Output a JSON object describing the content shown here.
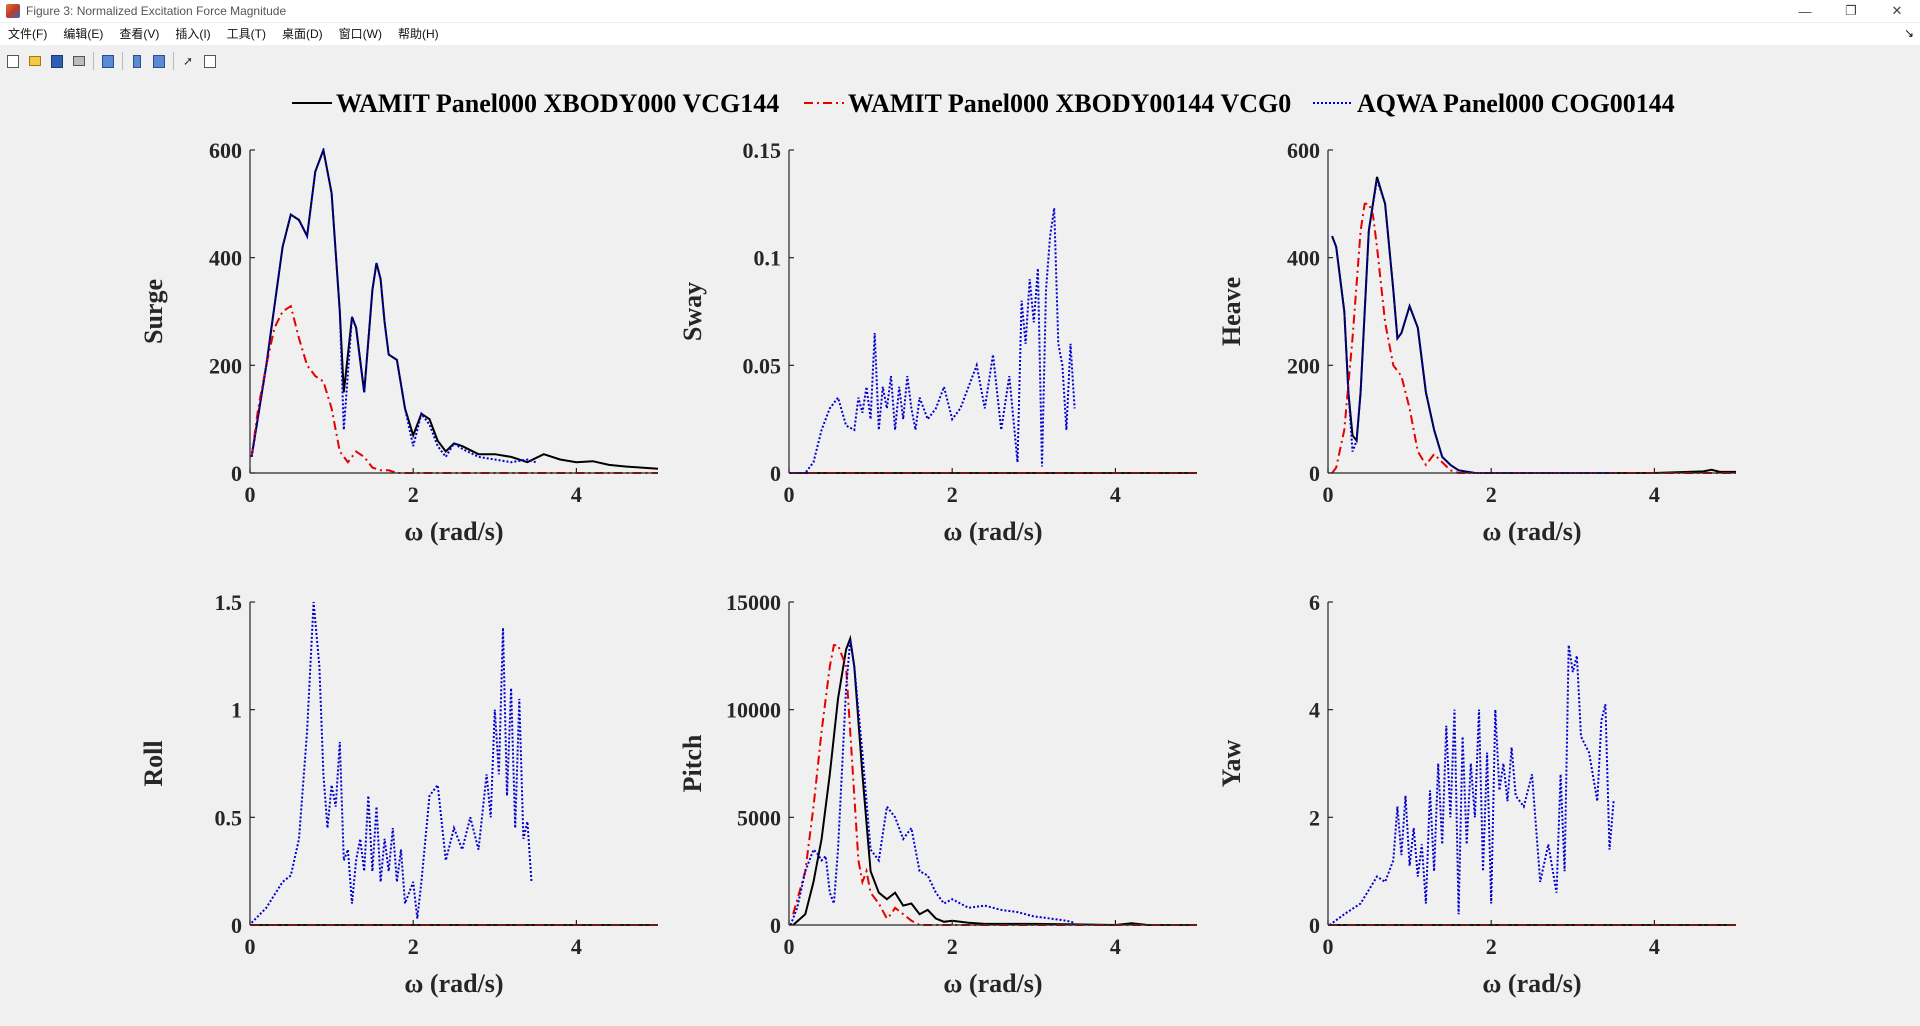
{
  "window": {
    "title": "Figure 3: Normalized Excitation Force Magnitude",
    "controls": [
      "—",
      "❐",
      "✕"
    ]
  },
  "menu": [
    "文件(F)",
    "编辑(E)",
    "查看(V)",
    "插入(I)",
    "工具(T)",
    "桌面(D)",
    "窗口(W)",
    "帮助(H)"
  ],
  "toolbar": [
    "new-figure-icon",
    "open-folder-icon",
    "save-disk-icon",
    "print-icon",
    "print-preview-icon",
    "colorbar-icon",
    "legend-icon",
    "pointer-arrow-icon",
    "property-inspector-icon"
  ],
  "legend": [
    {
      "name": "WAMIT Panel000 XBODY000 VCG144",
      "color": "#000000",
      "dash": "solid"
    },
    {
      "name": "WAMIT Panel000 XBODY00144 VCG0",
      "color": "#e60000",
      "dash": "dashdot"
    },
    {
      "name": "AQWA Panel000 COG00144",
      "color": "#0000cc",
      "dash": "dotted"
    }
  ],
  "chart_data": [
    {
      "type": "line",
      "ylabel": "Surge",
      "xlabel": "ω (rad/s)",
      "xlim": [
        0,
        5
      ],
      "ylim": [
        0,
        600
      ],
      "xticks": [
        "0",
        "2",
        "4"
      ],
      "yticks": [
        "0",
        "200",
        "400",
        "600"
      ],
      "series": [
        {
          "name": "WAMIT Panel000 XBODY000 VCG144",
          "x": [
            0.02,
            0.2,
            0.4,
            0.5,
            0.6,
            0.7,
            0.8,
            0.9,
            1.0,
            1.1,
            1.15,
            1.25,
            1.3,
            1.4,
            1.5,
            1.55,
            1.6,
            1.65,
            1.7,
            1.8,
            1.9,
            2.0,
            2.1,
            2.2,
            2.3,
            2.4,
            2.5,
            2.6,
            2.8,
            3.0,
            3.2,
            3.4,
            3.6,
            3.8,
            4.0,
            4.2,
            4.4,
            4.6,
            4.8,
            5.0
          ],
          "y": [
            30,
            200,
            420,
            480,
            470,
            440,
            560,
            600,
            520,
            300,
            150,
            290,
            270,
            150,
            340,
            390,
            360,
            280,
            220,
            210,
            120,
            70,
            110,
            100,
            60,
            40,
            55,
            50,
            35,
            35,
            30,
            20,
            35,
            25,
            20,
            22,
            15,
            12,
            10,
            8
          ]
        },
        {
          "name": "WAMIT Panel000 XBODY00144 VCG0",
          "x": [
            0.02,
            0.1,
            0.2,
            0.3,
            0.4,
            0.5,
            0.6,
            0.7,
            0.8,
            0.9,
            1.0,
            1.1,
            1.2,
            1.3,
            1.4,
            1.5,
            1.6,
            1.7,
            1.8,
            2.0,
            3.0,
            5.0
          ],
          "y": [
            30,
            120,
            200,
            270,
            300,
            310,
            250,
            200,
            180,
            170,
            120,
            40,
            20,
            40,
            30,
            10,
            5,
            5,
            0,
            0,
            0,
            0
          ]
        },
        {
          "name": "AQWA Panel000 COG00144",
          "x": [
            0.02,
            0.2,
            0.4,
            0.5,
            0.6,
            0.7,
            0.8,
            0.9,
            1.0,
            1.1,
            1.15,
            1.25,
            1.3,
            1.4,
            1.5,
            1.55,
            1.6,
            1.65,
            1.7,
            1.8,
            1.9,
            2.0,
            2.1,
            2.2,
            2.3,
            2.4,
            2.5,
            2.6,
            2.8,
            3.0,
            3.2,
            3.4,
            3.5
          ],
          "y": [
            30,
            200,
            420,
            480,
            470,
            440,
            560,
            600,
            520,
            300,
            80,
            290,
            270,
            150,
            340,
            390,
            360,
            280,
            220,
            210,
            120,
            50,
            110,
            90,
            50,
            30,
            55,
            45,
            30,
            25,
            20,
            25,
            20
          ]
        }
      ]
    },
    {
      "type": "line",
      "ylabel": "Sway",
      "xlabel": "ω (rad/s)",
      "xlim": [
        0,
        5
      ],
      "ylim": [
        0,
        0.15
      ],
      "xticks": [
        "0",
        "2",
        "4"
      ],
      "yticks": [
        "0",
        "0.05",
        "0.1",
        "0.15"
      ],
      "series": [
        {
          "name": "WAMIT Panel000 XBODY000 VCG144",
          "x": [
            0,
            5
          ],
          "y": [
            0,
            0
          ]
        },
        {
          "name": "WAMIT Panel000 XBODY00144 VCG0",
          "x": [
            0,
            5
          ],
          "y": [
            0,
            0
          ]
        },
        {
          "name": "AQWA Panel000 COG00144",
          "x": [
            0.02,
            0.2,
            0.3,
            0.4,
            0.5,
            0.6,
            0.7,
            0.8,
            0.85,
            0.9,
            0.95,
            1.0,
            1.05,
            1.1,
            1.15,
            1.2,
            1.25,
            1.3,
            1.35,
            1.4,
            1.45,
            1.5,
            1.55,
            1.6,
            1.7,
            1.8,
            1.9,
            2.0,
            2.1,
            2.2,
            2.3,
            2.4,
            2.5,
            2.6,
            2.7,
            2.8,
            2.85,
            2.9,
            2.95,
            3.0,
            3.05,
            3.1,
            3.15,
            3.2,
            3.25,
            3.3,
            3.35,
            3.4,
            3.45,
            3.5
          ],
          "y": [
            0,
            0,
            0.005,
            0.02,
            0.03,
            0.035,
            0.022,
            0.02,
            0.035,
            0.028,
            0.04,
            0.025,
            0.065,
            0.02,
            0.04,
            0.03,
            0.045,
            0.02,
            0.04,
            0.025,
            0.045,
            0.03,
            0.02,
            0.035,
            0.025,
            0.03,
            0.04,
            0.025,
            0.03,
            0.04,
            0.05,
            0.03,
            0.055,
            0.02,
            0.045,
            0.005,
            0.08,
            0.06,
            0.09,
            0.07,
            0.095,
            0.003,
            0.085,
            0.11,
            0.123,
            0.06,
            0.05,
            0.02,
            0.06,
            0.03
          ]
        }
      ]
    },
    {
      "type": "line",
      "ylabel": "Heave",
      "xlabel": "ω (rad/s)",
      "xlim": [
        0,
        5
      ],
      "ylim": [
        0,
        600
      ],
      "xticks": [
        "0",
        "2",
        "4"
      ],
      "yticks": [
        "0",
        "200",
        "400",
        "600"
      ],
      "series": [
        {
          "name": "WAMIT Panel000 XBODY000 VCG144",
          "x": [
            0.05,
            0.1,
            0.2,
            0.25,
            0.3,
            0.35,
            0.4,
            0.5,
            0.6,
            0.7,
            0.8,
            0.85,
            0.9,
            1.0,
            1.1,
            1.2,
            1.3,
            1.4,
            1.5,
            1.6,
            1.8,
            2.0,
            3.0,
            4.0,
            4.6,
            4.7,
            4.8,
            5.0
          ],
          "y": [
            440,
            420,
            300,
            150,
            70,
            60,
            150,
            450,
            550,
            500,
            340,
            250,
            260,
            310,
            270,
            150,
            80,
            30,
            15,
            5,
            0,
            0,
            0,
            0,
            3,
            6,
            2,
            2
          ]
        },
        {
          "name": "WAMIT Panel000 XBODY00144 VCG0",
          "x": [
            0.05,
            0.1,
            0.2,
            0.3,
            0.4,
            0.45,
            0.5,
            0.55,
            0.6,
            0.7,
            0.8,
            0.9,
            1.0,
            1.1,
            1.2,
            1.3,
            1.4,
            1.5,
            1.6,
            1.8,
            2.0,
            5.0
          ],
          "y": [
            0,
            10,
            80,
            250,
            450,
            500,
            500,
            480,
            420,
            280,
            200,
            180,
            120,
            40,
            15,
            35,
            20,
            5,
            0,
            0,
            0,
            0
          ]
        },
        {
          "name": "AQWA Panel000 COG00144",
          "x": [
            0.05,
            0.1,
            0.2,
            0.25,
            0.3,
            0.35,
            0.4,
            0.5,
            0.6,
            0.7,
            0.8,
            0.85,
            0.9,
            1.0,
            1.1,
            1.2,
            1.3,
            1.4,
            1.5,
            1.6,
            1.8,
            2.0,
            3.0,
            3.5
          ],
          "y": [
            440,
            420,
            300,
            150,
            40,
            60,
            150,
            450,
            545,
            500,
            340,
            250,
            260,
            310,
            270,
            150,
            80,
            30,
            15,
            5,
            0,
            0,
            0,
            0
          ]
        }
      ]
    },
    {
      "type": "line",
      "ylabel": "Roll",
      "xlabel": "ω (rad/s)",
      "xlim": [
        0,
        5
      ],
      "ylim": [
        0,
        1.5
      ],
      "xticks": [
        "0",
        "2",
        "4"
      ],
      "yticks": [
        "0",
        "0.5",
        "1",
        "1.5"
      ],
      "series": [
        {
          "name": "WAMIT Panel000 XBODY000 VCG144",
          "x": [
            0,
            5
          ],
          "y": [
            0,
            0
          ]
        },
        {
          "name": "WAMIT Panel000 XBODY00144 VCG0",
          "x": [
            0,
            5
          ],
          "y": [
            0,
            0
          ]
        },
        {
          "name": "AQWA Panel000 COG00144",
          "x": [
            0.02,
            0.2,
            0.4,
            0.5,
            0.6,
            0.7,
            0.78,
            0.85,
            0.9,
            0.95,
            1.0,
            1.05,
            1.1,
            1.15,
            1.2,
            1.25,
            1.3,
            1.35,
            1.4,
            1.45,
            1.5,
            1.55,
            1.6,
            1.65,
            1.7,
            1.75,
            1.8,
            1.85,
            1.9,
            2.0,
            2.05,
            2.1,
            2.2,
            2.3,
            2.4,
            2.5,
            2.6,
            2.7,
            2.8,
            2.9,
            2.95,
            3.0,
            3.05,
            3.1,
            3.15,
            3.2,
            3.25,
            3.3,
            3.35,
            3.4,
            3.45
          ],
          "y": [
            0.01,
            0.08,
            0.2,
            0.23,
            0.4,
            0.9,
            1.5,
            1.2,
            0.7,
            0.45,
            0.65,
            0.55,
            0.85,
            0.3,
            0.35,
            0.1,
            0.3,
            0.4,
            0.25,
            0.6,
            0.25,
            0.55,
            0.2,
            0.4,
            0.25,
            0.45,
            0.2,
            0.35,
            0.1,
            0.2,
            0.03,
            0.2,
            0.6,
            0.65,
            0.3,
            0.45,
            0.35,
            0.5,
            0.35,
            0.7,
            0.5,
            1.0,
            0.7,
            1.38,
            0.6,
            1.1,
            0.45,
            1.05,
            0.4,
            0.48,
            0.2
          ]
        }
      ]
    },
    {
      "type": "line",
      "ylabel": "Pitch",
      "xlabel": "ω (rad/s)",
      "xlim": [
        0,
        5
      ],
      "ylim": [
        0,
        15000
      ],
      "xticks": [
        "0",
        "2",
        "4"
      ],
      "yticks": [
        "0",
        "5000",
        "10000",
        "15000"
      ],
      "series": [
        {
          "name": "WAMIT Panel000 XBODY000 VCG144",
          "x": [
            0.05,
            0.2,
            0.3,
            0.4,
            0.5,
            0.6,
            0.7,
            0.75,
            0.8,
            0.9,
            1.0,
            1.1,
            1.2,
            1.3,
            1.4,
            1.5,
            1.6,
            1.7,
            1.8,
            1.9,
            2.0,
            2.2,
            2.4,
            3.0,
            3.5,
            4.0,
            4.2,
            4.4,
            5.0
          ],
          "y": [
            0,
            500,
            2000,
            4000,
            7000,
            10500,
            12800,
            13300,
            12000,
            7000,
            2500,
            1500,
            1200,
            1500,
            900,
            1000,
            500,
            700,
            300,
            150,
            200,
            100,
            50,
            50,
            30,
            0,
            80,
            0,
            0
          ]
        },
        {
          "name": "WAMIT Panel000 XBODY00144 VCG0",
          "x": [
            0.05,
            0.2,
            0.3,
            0.4,
            0.5,
            0.55,
            0.6,
            0.7,
            0.8,
            0.85,
            0.9,
            0.95,
            1.0,
            1.1,
            1.2,
            1.25,
            1.3,
            1.4,
            1.5,
            1.6,
            1.8,
            2.0,
            5.0
          ],
          "y": [
            500,
            2500,
            5500,
            9000,
            12000,
            13000,
            13000,
            12000,
            6000,
            3000,
            2000,
            2500,
            1500,
            1000,
            300,
            500,
            800,
            500,
            200,
            0,
            0,
            0,
            0
          ]
        },
        {
          "name": "AQWA Panel000 COG00144",
          "x": [
            0.02,
            0.1,
            0.2,
            0.3,
            0.35,
            0.4,
            0.45,
            0.5,
            0.55,
            0.6,
            0.7,
            0.75,
            0.8,
            0.9,
            1.0,
            1.1,
            1.2,
            1.3,
            1.4,
            1.5,
            1.6,
            1.7,
            1.8,
            1.9,
            2.0,
            2.2,
            2.4,
            2.6,
            2.8,
            3.0,
            3.2,
            3.4,
            3.5
          ],
          "y": [
            0,
            800,
            2500,
            3500,
            3300,
            3000,
            3200,
            1500,
            1000,
            3500,
            11000,
            13200,
            12000,
            8000,
            3500,
            3000,
            5500,
            5000,
            4000,
            4500,
            2500,
            2300,
            1500,
            1000,
            1200,
            800,
            900,
            700,
            600,
            400,
            300,
            200,
            100
          ]
        }
      ]
    },
    {
      "type": "line",
      "ylabel": "Yaw",
      "xlabel": "ω (rad/s)",
      "xlim": [
        0,
        5
      ],
      "ylim": [
        0,
        6
      ],
      "xticks": [
        "0",
        "2",
        "4"
      ],
      "yticks": [
        "0",
        "2",
        "4",
        "6"
      ],
      "series": [
        {
          "name": "WAMIT Panel000 XBODY000 VCG144",
          "x": [
            0,
            5
          ],
          "y": [
            0,
            0
          ]
        },
        {
          "name": "WAMIT Panel000 XBODY00144 VCG0",
          "x": [
            0,
            5
          ],
          "y": [
            0,
            0
          ]
        },
        {
          "name": "AQWA Panel000 COG00144",
          "x": [
            0.02,
            0.2,
            0.4,
            0.6,
            0.7,
            0.8,
            0.85,
            0.9,
            0.95,
            1.0,
            1.05,
            1.1,
            1.15,
            1.2,
            1.25,
            1.3,
            1.35,
            1.4,
            1.45,
            1.5,
            1.55,
            1.6,
            1.65,
            1.7,
            1.75,
            1.8,
            1.85,
            1.9,
            1.95,
            2.0,
            2.05,
            2.1,
            2.15,
            2.2,
            2.25,
            2.3,
            2.4,
            2.5,
            2.6,
            2.7,
            2.8,
            2.85,
            2.9,
            2.95,
            3.0,
            3.05,
            3.1,
            3.2,
            3.3,
            3.35,
            3.4,
            3.45,
            3.5
          ],
          "y": [
            0,
            0.2,
            0.4,
            0.9,
            0.8,
            1.2,
            2.2,
            1.3,
            2.4,
            1.1,
            1.8,
            0.9,
            1.5,
            0.4,
            2.5,
            1.0,
            3.0,
            1.5,
            3.7,
            2.0,
            4.0,
            0.2,
            3.5,
            1.5,
            3.0,
            2.0,
            4.0,
            1.0,
            3.2,
            0.4,
            4.0,
            2.5,
            3.0,
            2.3,
            3.3,
            2.4,
            2.2,
            2.8,
            0.8,
            1.5,
            0.6,
            2.8,
            1.0,
            5.2,
            4.7,
            5.0,
            3.5,
            3.2,
            2.3,
            3.8,
            4.1,
            1.4,
            2.3
          ]
        }
      ]
    }
  ]
}
